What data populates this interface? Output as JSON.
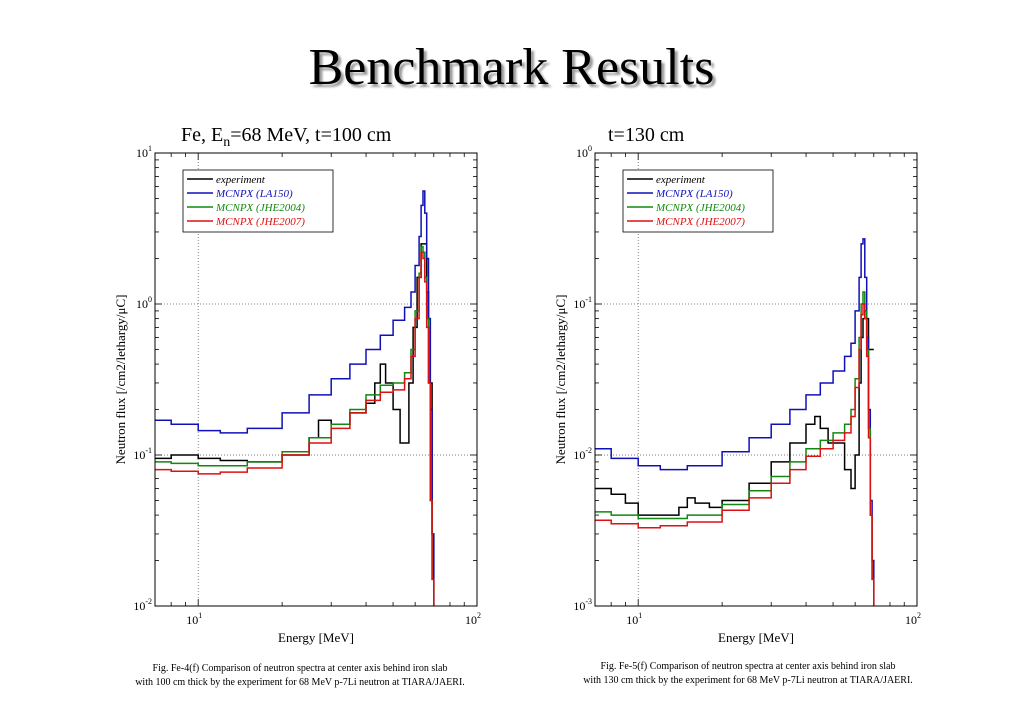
{
  "page": {
    "title": "Benchmark Results",
    "subtitle_left": {
      "pre": "Fe, E",
      "sub": "n",
      "post": "=68 MeV, t=100 cm"
    },
    "subtitle_right": "t=130 cm",
    "caption_left": [
      "Fig. Fe-4(f)    Comparison of neutron spectra at center axis behind iron slab",
      "with 100 cm thick by the experiment for 68 MeV p-7Li neutron at TIARA/JAERI."
    ],
    "caption_right": [
      "Fig. Fe-5(f)    Comparison of neutron spectra at center axis behind iron slab",
      "with 130 cm thick by the experiment for 68 MeV p-7Li neutron at TIARA/JAERI."
    ]
  },
  "chart_data": [
    {
      "type": "line",
      "xlabel": "Energy [MeV]",
      "ylabel": "Neutron flux [/cm2/lethargy/μC]",
      "xscale": "log",
      "yscale": "log",
      "xlim": [
        7,
        100
      ],
      "ylim": [
        0.01,
        10
      ],
      "xticks": [
        {
          "base": "10",
          "exp": "1"
        },
        {
          "base": "10",
          "exp": "2"
        }
      ],
      "yticks": [
        {
          "base": "10",
          "exp": "-2"
        },
        {
          "base": "10",
          "exp": "-1"
        },
        {
          "base": "10",
          "exp": "0"
        },
        {
          "base": "10",
          "exp": "1"
        }
      ],
      "grid": "dotted at decades",
      "legend": "top-left",
      "series": [
        {
          "name": "experiment",
          "color": "#000000",
          "x": [
            7,
            8,
            10,
            12,
            15,
            20,
            25,
            27,
            30,
            35,
            40,
            43,
            45,
            47,
            50,
            53,
            55,
            57,
            59,
            61,
            63,
            65,
            66,
            67,
            68,
            69,
            70
          ],
          "y": [
            0.095,
            0.1,
            0.095,
            0.092,
            0.09,
            0.1,
            0.13,
            0.17,
            0.16,
            0.19,
            0.22,
            0.3,
            0.4,
            0.3,
            0.2,
            0.12,
            0.12,
            0.3,
            0.7,
            1.5,
            2.5,
            2.5,
            1.2,
            0.8,
            0.3,
            0.03,
            0.01
          ]
        },
        {
          "name": "MCNPX (LA150)",
          "color": "#1010b8",
          "x": [
            7,
            8,
            10,
            12,
            15,
            20,
            25,
            30,
            35,
            40,
            45,
            50,
            55,
            58,
            60,
            62,
            63,
            64,
            65,
            66,
            67,
            68,
            69,
            70
          ],
          "y": [
            0.17,
            0.16,
            0.145,
            0.14,
            0.15,
            0.19,
            0.25,
            0.32,
            0.4,
            0.5,
            0.62,
            0.78,
            0.95,
            1.2,
            1.8,
            2.8,
            4.5,
            5.6,
            4.0,
            2.0,
            0.8,
            0.2,
            0.03,
            0.01
          ]
        },
        {
          "name": "MCNPX (JHE2004)",
          "color": "#118811",
          "x": [
            7,
            8,
            10,
            12,
            15,
            20,
            25,
            30,
            35,
            40,
            45,
            50,
            55,
            58,
            60,
            62,
            63,
            64,
            65,
            66,
            67,
            68,
            69,
            70
          ],
          "y": [
            0.09,
            0.088,
            0.085,
            0.085,
            0.09,
            0.105,
            0.13,
            0.16,
            0.2,
            0.25,
            0.29,
            0.3,
            0.35,
            0.5,
            0.9,
            1.6,
            2.4,
            2.2,
            1.5,
            0.8,
            0.3,
            0.05,
            0.015,
            0.01
          ]
        },
        {
          "name": "MCNPX (JHE2007)",
          "color": "#dd1111",
          "x": [
            7,
            8,
            10,
            12,
            15,
            20,
            25,
            30,
            35,
            40,
            45,
            50,
            55,
            58,
            60,
            62,
            63,
            64,
            65,
            66,
            67,
            68,
            69,
            70
          ],
          "y": [
            0.08,
            0.078,
            0.075,
            0.077,
            0.082,
            0.1,
            0.12,
            0.15,
            0.19,
            0.23,
            0.26,
            0.27,
            0.32,
            0.45,
            0.8,
            1.5,
            2.2,
            2.0,
            1.4,
            0.7,
            0.3,
            0.05,
            0.015,
            0.01
          ]
        }
      ]
    },
    {
      "type": "line",
      "xlabel": "Energy [MeV]",
      "ylabel": "Neutron flux [/cm2/lethargy/μC]",
      "xscale": "log",
      "yscale": "log",
      "xlim": [
        7,
        100
      ],
      "ylim": [
        0.001,
        1
      ],
      "xticks": [
        {
          "base": "10",
          "exp": "1"
        },
        {
          "base": "10",
          "exp": "2"
        }
      ],
      "yticks": [
        {
          "base": "10",
          "exp": "-3"
        },
        {
          "base": "10",
          "exp": "-2"
        },
        {
          "base": "10",
          "exp": "-1"
        },
        {
          "base": "10",
          "exp": "0"
        }
      ],
      "grid": "dotted at decades",
      "legend": "top-left",
      "series": [
        {
          "name": "experiment",
          "color": "#000000",
          "x": [
            7,
            8,
            9,
            10,
            12,
            14,
            15,
            16,
            18,
            20,
            25,
            30,
            35,
            40,
            43,
            45,
            48,
            50,
            55,
            58,
            60,
            62,
            63,
            64,
            65,
            66,
            67,
            68,
            70
          ],
          "y": [
            0.006,
            0.0055,
            0.0048,
            0.004,
            0.004,
            0.0045,
            0.0052,
            0.0048,
            0.0045,
            0.005,
            0.0065,
            0.009,
            0.012,
            0.016,
            0.018,
            0.015,
            0.012,
            0.012,
            0.008,
            0.006,
            0.01,
            0.03,
            0.06,
            0.08,
            0.09,
            0.08,
            0.05,
            0.05,
            0.05
          ]
        },
        {
          "name": "MCNPX (LA150)",
          "color": "#1010b8",
          "x": [
            7,
            8,
            10,
            12,
            15,
            20,
            25,
            30,
            35,
            40,
            45,
            50,
            55,
            58,
            60,
            62,
            63,
            64,
            65,
            66,
            67,
            68,
            69,
            70
          ],
          "y": [
            0.011,
            0.0095,
            0.0085,
            0.008,
            0.0085,
            0.0105,
            0.013,
            0.016,
            0.02,
            0.025,
            0.03,
            0.036,
            0.045,
            0.055,
            0.09,
            0.15,
            0.25,
            0.27,
            0.15,
            0.06,
            0.02,
            0.005,
            0.002,
            0.001
          ]
        },
        {
          "name": "MCNPX (JHE2004)",
          "color": "#118811",
          "x": [
            7,
            8,
            10,
            12,
            15,
            20,
            25,
            30,
            35,
            40,
            45,
            50,
            55,
            58,
            60,
            62,
            63,
            64,
            65,
            66,
            67,
            68,
            69,
            70
          ],
          "y": [
            0.0042,
            0.004,
            0.0038,
            0.0038,
            0.004,
            0.0047,
            0.0058,
            0.0072,
            0.009,
            0.011,
            0.0125,
            0.014,
            0.016,
            0.02,
            0.032,
            0.06,
            0.1,
            0.12,
            0.09,
            0.05,
            0.015,
            0.004,
            0.0015,
            0.001
          ]
        },
        {
          "name": "MCNPX (JHE2007)",
          "color": "#dd1111",
          "x": [
            7,
            8,
            10,
            12,
            15,
            20,
            25,
            30,
            35,
            40,
            45,
            50,
            55,
            58,
            60,
            62,
            63,
            64,
            65,
            66,
            67,
            68,
            69,
            70
          ],
          "y": [
            0.0037,
            0.0035,
            0.0033,
            0.0034,
            0.0036,
            0.0043,
            0.0052,
            0.0065,
            0.008,
            0.0098,
            0.011,
            0.0125,
            0.014,
            0.018,
            0.028,
            0.05,
            0.085,
            0.1,
            0.08,
            0.045,
            0.013,
            0.004,
            0.0015,
            0.001
          ]
        }
      ]
    }
  ]
}
